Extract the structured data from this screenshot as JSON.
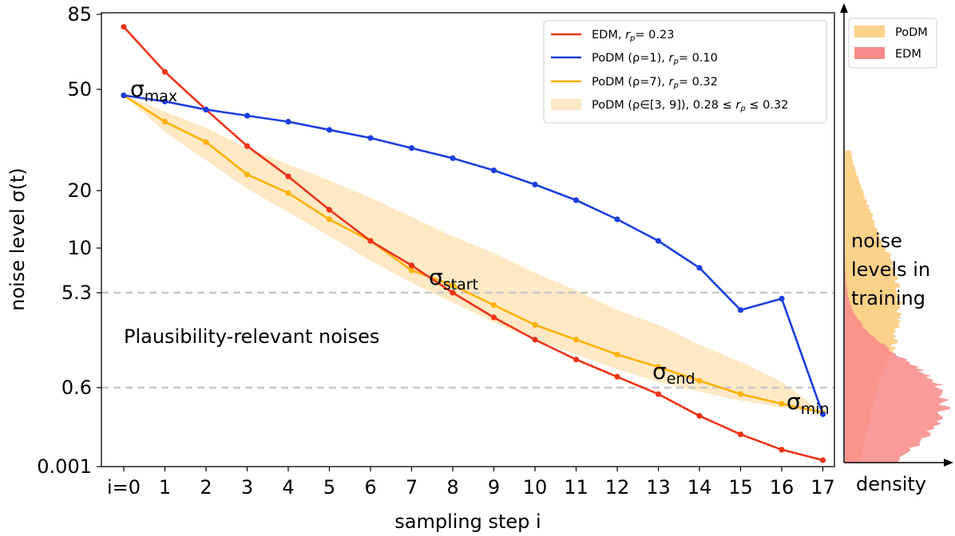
{
  "chart_data": {
    "type": "line",
    "xlabel": "sampling step i",
    "ylabel": "noise level σ(t)",
    "categories": [
      "i=0",
      "1",
      "2",
      "3",
      "4",
      "5",
      "6",
      "7",
      "8",
      "9",
      "10",
      "11",
      "12",
      "13",
      "14",
      "15",
      "16",
      "17"
    ],
    "x": [
      0,
      1,
      2,
      3,
      4,
      5,
      6,
      7,
      8,
      9,
      10,
      11,
      12,
      13,
      14,
      15,
      16,
      17
    ],
    "y_ticks": [
      {
        "label": "85",
        "level": 9.0
      },
      {
        "label": "50",
        "level": 7.5
      },
      {
        "label": "20",
        "level": 5.0
      },
      {
        "label": "10",
        "level": 3.8
      },
      {
        "label": "5.3",
        "level": 2.9
      },
      {
        "label": "0.6",
        "level": 0.98
      },
      {
        "label": "0.001",
        "level": 0.0
      }
    ],
    "y_scale_note": "non-linear axis; values expressed in tick-label units via level mapping",
    "ylim_level": [
      0,
      9
    ],
    "series": [
      {
        "name": "EDM",
        "legend": "EDM, r_p= 0.23",
        "color": "#ee3318",
        "levels": [
          8.75,
          7.85,
          7.0,
          6.1,
          5.35,
          4.6,
          3.95,
          3.45,
          2.9,
          2.4,
          1.95,
          1.55,
          1.2,
          0.9,
          0.63,
          0.4,
          0.21,
          0.08
        ]
      },
      {
        "name": "PoDM (ρ=1)",
        "legend": "PoDM (ρ=1), r_p= 0.10",
        "color": "#1b3fe0",
        "levels": [
          7.35,
          7.2,
          7.0,
          6.85,
          6.7,
          6.5,
          6.3,
          6.05,
          5.8,
          5.5,
          5.15,
          4.8,
          4.4,
          3.95,
          3.4,
          2.55,
          2.78,
          0.65
        ]
      },
      {
        "name": "PoDM (ρ=7)",
        "legend": "PoDM (ρ=7), r_p= 0.32",
        "color": "#ffb20a",
        "levels": [
          7.35,
          6.7,
          6.2,
          5.4,
          4.95,
          4.4,
          3.95,
          3.35,
          3.05,
          2.65,
          2.25,
          1.95,
          1.65,
          1.4,
          1.12,
          0.9,
          0.78,
          0.67
        ]
      }
    ],
    "band": {
      "name": "PoDM (ρ∈[3, 9])",
      "legend": "PoDM (ρ∈[3, 9]), 0.28 ≤ r_p ≤ 0.32",
      "color": "#fde9c4",
      "upper": [
        7.35,
        6.95,
        6.55,
        6.05,
        5.65,
        5.25,
        4.85,
        4.45,
        4.05,
        3.7,
        3.3,
        2.95,
        2.55,
        2.25,
        1.85,
        1.5,
        1.1,
        0.67
      ],
      "lower": [
        7.35,
        6.45,
        5.75,
        5.05,
        4.55,
        4.05,
        3.55,
        3.1,
        2.7,
        2.3,
        1.95,
        1.65,
        1.35,
        1.1,
        0.93,
        0.82,
        0.73,
        0.67
      ]
    },
    "reference_lines": [
      {
        "label": "5.3",
        "level": 2.9
      },
      {
        "label": "0.6",
        "level": 0.98
      }
    ],
    "annotations": {
      "sigma": "σ",
      "max": "max",
      "start": "start",
      "end": "end",
      "min": "min",
      "region": "Plausibility-relevant noises"
    },
    "legend": {
      "edm": {
        "main": "EDM, ",
        "r": "r",
        "p": "p",
        "val": "= 0.23"
      },
      "podm1": {
        "main": "PoDM (ρ=1), ",
        "r": "r",
        "p": "p",
        "val": "= 0.10"
      },
      "podm7": {
        "main": "PoDM (ρ=7), ",
        "r": "r",
        "p": "p",
        "val": "= 0.32"
      },
      "band": {
        "main": "PoDM (ρ∈[3, 9]), 0.28 ≤ ",
        "r": "r",
        "p": "p",
        "val": " ≤ 0.32"
      }
    },
    "side_panel": {
      "xlabel": "density",
      "legend": [
        {
          "name": "PoDM",
          "color": "#fcd28a"
        },
        {
          "name": "EDM",
          "color": "#f88a8a"
        }
      ],
      "text": [
        "noise",
        "levels in",
        "training"
      ],
      "series": [
        {
          "name": "PoDM",
          "color": "#fcd28a",
          "center_level": 2.6,
          "spread": 1.6,
          "peak": 0.55
        },
        {
          "name": "EDM",
          "color": "#f88a8a",
          "center_level": 0.75,
          "spread": 0.8,
          "peak": 1.0
        }
      ]
    }
  }
}
